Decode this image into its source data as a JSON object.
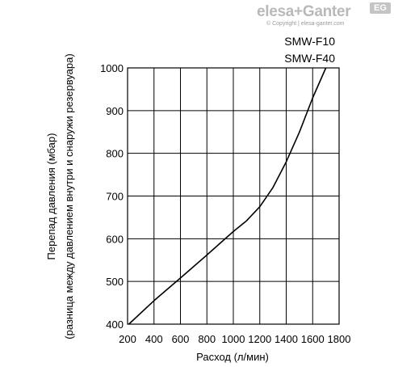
{
  "brand": {
    "logo_text": "elesa+Ganter",
    "badge": "EG",
    "copyright": "© Copyright | elesa-ganter.com"
  },
  "chart_data": {
    "type": "line",
    "title": "",
    "xlabel": "Расход (л/мин)",
    "ylabel": "Перепад давления (мбар)",
    "ylabel2": "(разница между давлением внутри и снаружи резервуара)",
    "xlim": [
      200,
      1800
    ],
    "ylim": [
      400,
      1000
    ],
    "x_ticks": [
      200,
      400,
      600,
      800,
      1000,
      1200,
      1400,
      1600,
      1800
    ],
    "y_ticks": [
      400,
      500,
      600,
      700,
      800,
      900,
      1000
    ],
    "grid": true,
    "annotations": [
      "SMW-F10",
      "SMW-F40"
    ],
    "series": [
      {
        "name": "",
        "color": "#000000",
        "x": [
          210,
          400,
          600,
          800,
          1000,
          1100,
          1200,
          1300,
          1400,
          1500,
          1600,
          1700
        ],
        "y": [
          400,
          455,
          508,
          562,
          617,
          642,
          675,
          720,
          780,
          850,
          930,
          1000
        ]
      }
    ]
  }
}
